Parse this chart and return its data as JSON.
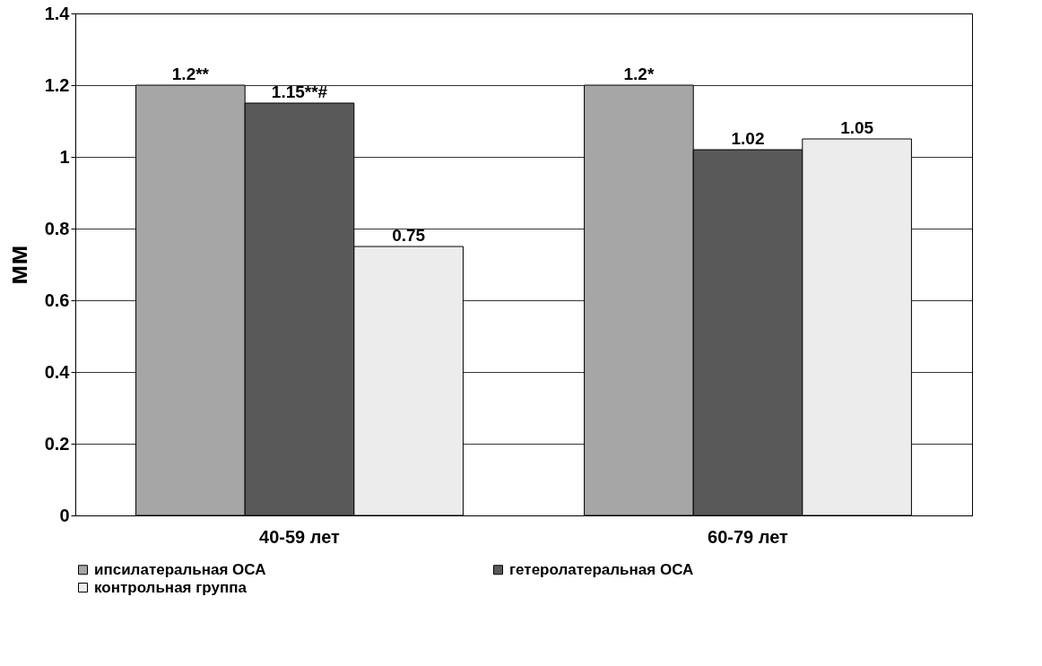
{
  "chart_data": {
    "type": "bar",
    "ylabel": "мм",
    "categories": [
      "40-59 лет",
      "60-79 лет"
    ],
    "series": [
      {
        "name": "ипсилатеральная ОСА",
        "color": "#a6a6a6",
        "values": [
          1.2,
          1.2
        ],
        "value_labels": [
          "1.2**",
          "1.2*"
        ]
      },
      {
        "name": "гетеролатеральная ОСА",
        "color": "#595959",
        "values": [
          1.15,
          1.02
        ],
        "value_labels": [
          "1.15**#",
          "1.02"
        ]
      },
      {
        "name": "контрольная группа",
        "color": "#ececec",
        "values": [
          0.75,
          1.05
        ],
        "value_labels": [
          "0.75",
          "1.05"
        ]
      }
    ],
    "ylim": [
      0,
      1.4
    ],
    "yticks": [
      0,
      0.2,
      0.4,
      0.6,
      0.8,
      1,
      1.2,
      1.4
    ],
    "grid": "y",
    "legend": "bottom"
  }
}
